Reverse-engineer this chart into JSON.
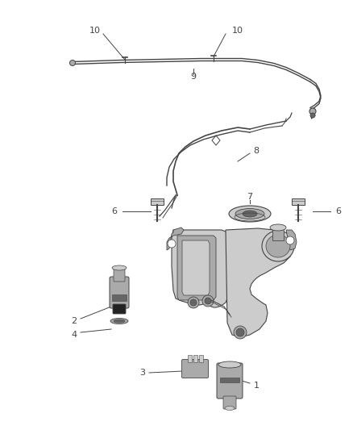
{
  "background_color": "#ffffff",
  "fig_width": 4.38,
  "fig_height": 5.33,
  "dpi": 100,
  "line_color": "#444444",
  "gray_light": "#cccccc",
  "gray_mid": "#aaaaaa",
  "gray_dark": "#666666"
}
